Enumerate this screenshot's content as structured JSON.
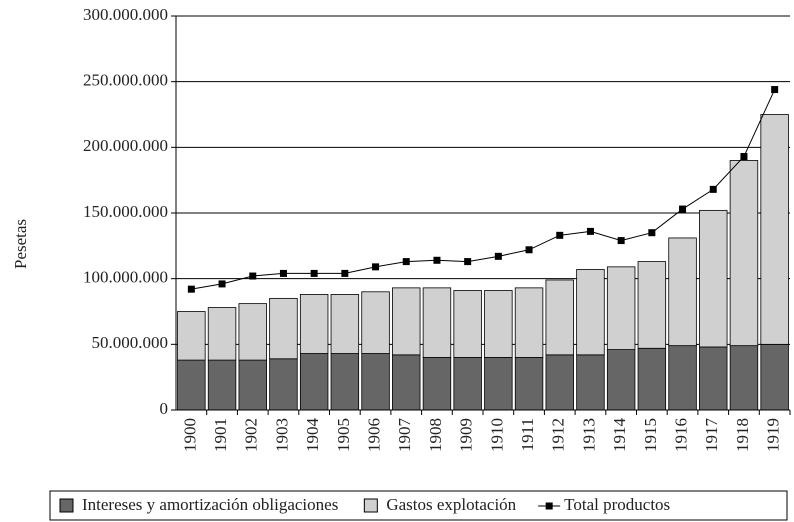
{
  "chart_data": {
    "type": "stacked-bar-line",
    "y_label": "Pesetas",
    "categories": [
      "1900",
      "1901",
      "1902",
      "1903",
      "1904",
      "1905",
      "1906",
      "1907",
      "1908",
      "1909",
      "1910",
      "1911",
      "1912",
      "1913",
      "1914",
      "1915",
      "1916",
      "1917",
      "1918",
      "1919"
    ],
    "series": [
      {
        "name": "Intereses y amortización obligaciones",
        "color": "#666666",
        "kind": "bar",
        "values": [
          38000000,
          38000000,
          38000000,
          39000000,
          43000000,
          43000000,
          43000000,
          42000000,
          40000000,
          40000000,
          40000000,
          40000000,
          42000000,
          42000000,
          46000000,
          47000000,
          49000000,
          48000000,
          49000000,
          50000000
        ]
      },
      {
        "name": "Gastos explotación",
        "color": "#d0d0d0",
        "kind": "bar",
        "values": [
          37000000,
          40000000,
          43000000,
          46000000,
          45000000,
          45000000,
          47000000,
          51000000,
          53000000,
          51000000,
          51000000,
          53000000,
          57000000,
          65000000,
          63000000,
          66000000,
          82000000,
          104000000,
          141000000,
          175000000
        ]
      },
      {
        "name": "Total productos",
        "color": "#000000",
        "kind": "line",
        "values": [
          92000000,
          96000000,
          102000000,
          104000000,
          104000000,
          104000000,
          109000000,
          113000000,
          114000000,
          113000000,
          117000000,
          122000000,
          133000000,
          136000000,
          129000000,
          135000000,
          153000000,
          168000000,
          193000000,
          244000000
        ]
      }
    ],
    "ylim": [
      0,
      300000000
    ],
    "yticks": [
      0,
      {
        "value": 50000000,
        "label": "50.000.000"
      },
      {
        "value": 100000000,
        "label": "100.000.000"
      },
      {
        "value": 150000000,
        "label": "150.000.000"
      },
      {
        "value": 200000000,
        "label": "200.000.000"
      },
      {
        "value": 250000000,
        "label": "250.000.000"
      },
      {
        "value": 300000000,
        "label": "300.000.000"
      }
    ],
    "grid": true,
    "legend": "bottom"
  }
}
